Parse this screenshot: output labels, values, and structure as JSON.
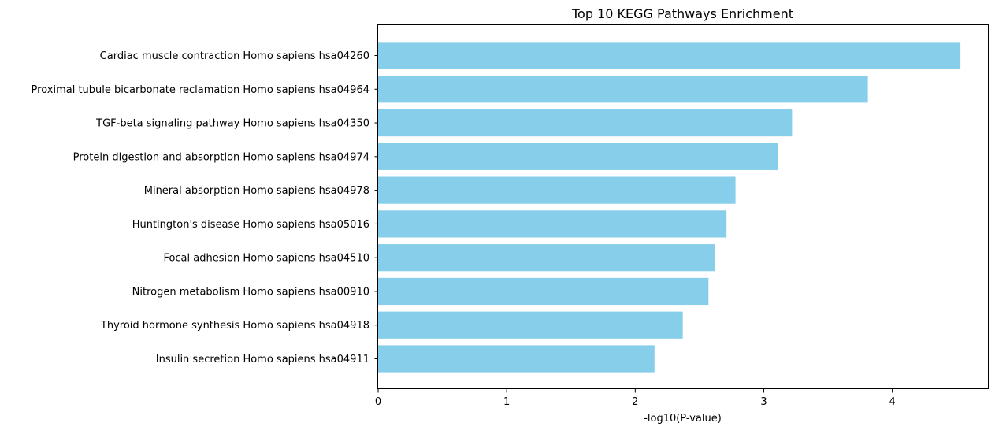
{
  "chart_data": {
    "type": "bar",
    "orientation": "horizontal",
    "title": "Top 10 KEGG Pathways Enrichment",
    "xlabel": "-log10(P-value)",
    "ylabel": "",
    "categories": [
      "Cardiac muscle contraction Homo sapiens hsa04260",
      "Proximal tubule bicarbonate reclamation Homo sapiens hsa04964",
      "TGF-beta signaling pathway Homo sapiens hsa04350",
      "Protein digestion and absorption Homo sapiens hsa04974",
      "Mineral absorption Homo sapiens hsa04978",
      "Huntington's disease Homo sapiens hsa05016",
      "Focal adhesion Homo sapiens hsa04510",
      "Nitrogen metabolism Homo sapiens hsa00910",
      "Thyroid hormone synthesis Homo sapiens hsa04918",
      "Insulin secretion Homo sapiens hsa04911"
    ],
    "values": [
      4.53,
      3.81,
      3.22,
      3.11,
      2.78,
      2.71,
      2.62,
      2.57,
      2.37,
      2.15
    ],
    "xlim": [
      0,
      4.75
    ],
    "xticks": [
      0,
      1,
      2,
      3,
      4
    ],
    "grid": false,
    "colors": {
      "bar": "#87ceeb",
      "axis": "#000000",
      "background": "#ffffff"
    }
  }
}
